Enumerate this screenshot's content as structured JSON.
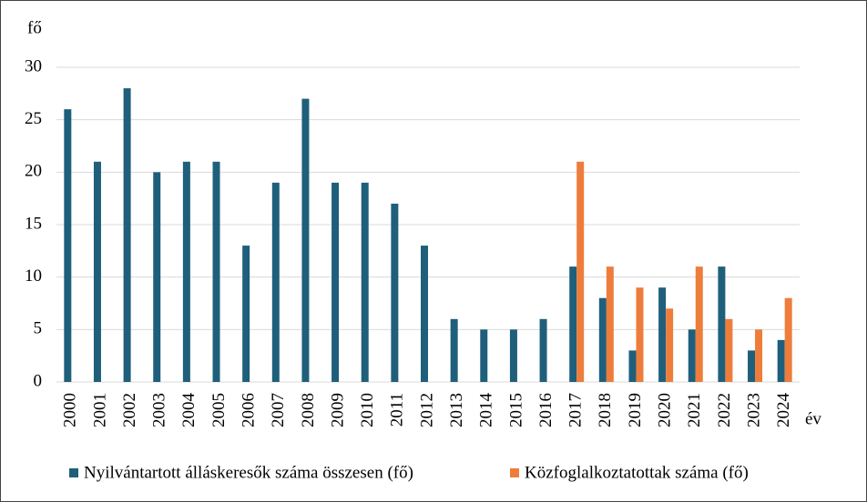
{
  "chart_data": {
    "type": "bar",
    "y_label": "fő",
    "x_label": "év",
    "categories": [
      "2000",
      "2001",
      "2002",
      "2003",
      "2004",
      "2005",
      "2006",
      "2007",
      "2008",
      "2009",
      "2010",
      "2011",
      "2012",
      "2013",
      "2014",
      "2015",
      "2016",
      "2017",
      "2018",
      "2019",
      "2020",
      "2021",
      "2022",
      "2023",
      "2024"
    ],
    "series": [
      {
        "name": "Nyilvántartott álláskeresők száma összesen (fő)",
        "color": "#1f5f7b",
        "values": [
          26,
          21,
          28,
          20,
          21,
          21,
          13,
          19,
          27,
          19,
          19,
          17,
          13,
          6,
          5,
          5,
          6,
          11,
          8,
          3,
          9,
          5,
          11,
          3,
          4
        ]
      },
      {
        "name": "Közfoglalkoztatottak száma (fő)",
        "color": "#ee7d3b",
        "values": [
          null,
          null,
          null,
          null,
          null,
          null,
          null,
          null,
          null,
          null,
          null,
          null,
          null,
          null,
          null,
          null,
          null,
          21,
          11,
          9,
          7,
          11,
          6,
          5,
          8
        ]
      }
    ],
    "ylim": [
      0,
      30
    ],
    "yticks": [
      0,
      5,
      10,
      15,
      20,
      25,
      30
    ],
    "grid": true,
    "legend": "bottom"
  }
}
